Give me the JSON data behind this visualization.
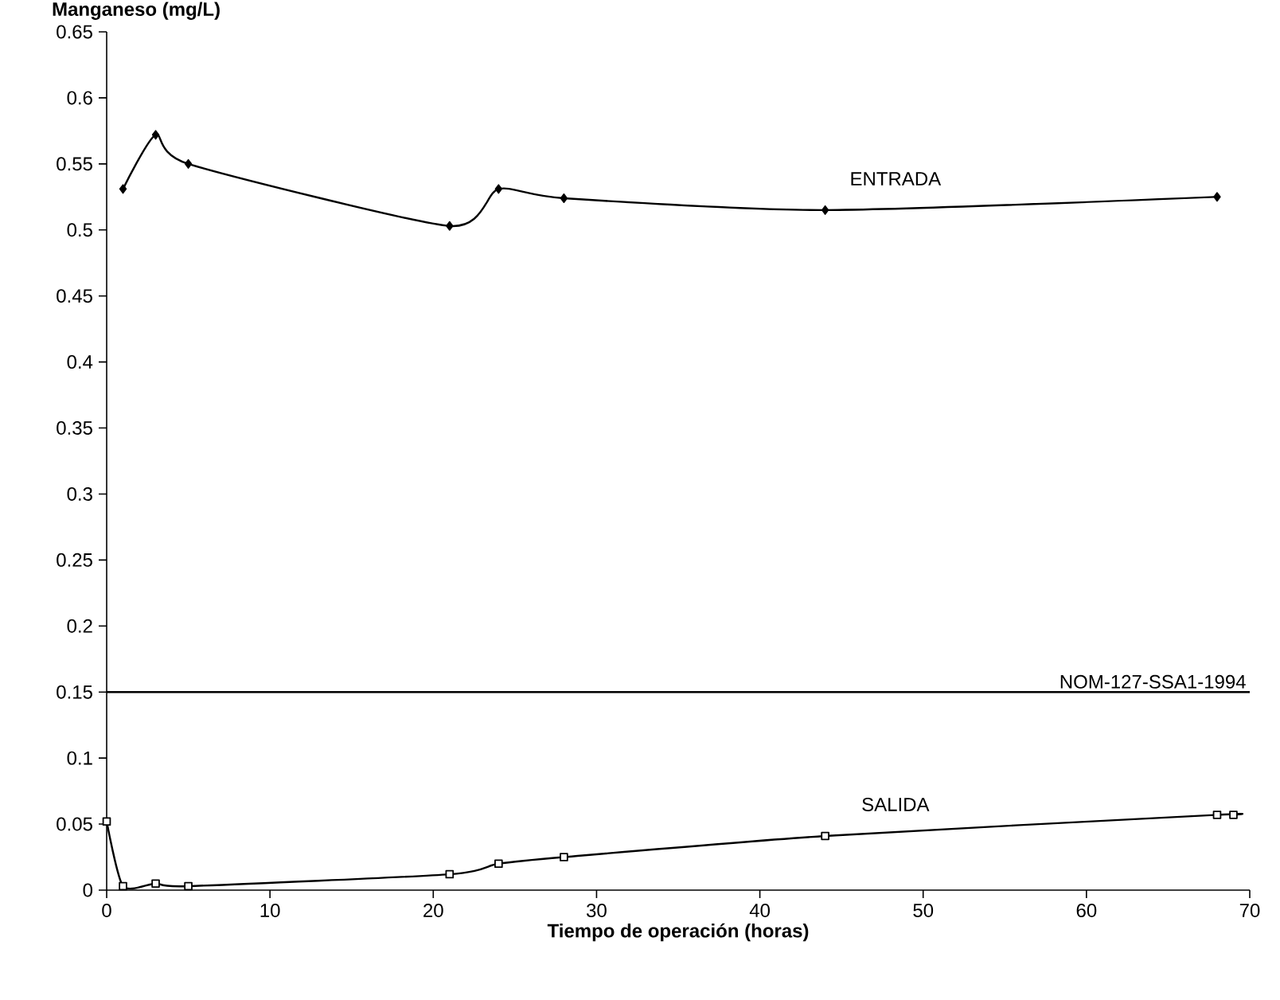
{
  "chart_data": {
    "type": "line",
    "xlabel": "Tiempo de operación (horas)",
    "ylabel": "Manganeso (mg/L)",
    "xlim": [
      0,
      70
    ],
    "xticks": [
      0,
      10,
      20,
      30,
      40,
      50,
      60,
      70
    ],
    "ylim": [
      0,
      0.65
    ],
    "yticks": [
      0,
      0.05,
      0.1,
      0.15,
      0.2,
      0.25,
      0.3,
      0.35,
      0.4,
      0.45,
      0.5,
      0.55,
      0.6,
      0.65
    ],
    "grid": false,
    "series": [
      {
        "color": "#000000",
        "marker": "diamond",
        "x": [
          1,
          3,
          5,
          21,
          24,
          28,
          44,
          68
        ],
        "values": [
          0.531,
          0.572,
          0.55,
          0.503,
          0.531,
          0.524,
          0.515,
          0.525
        ]
      },
      {
        "color": "#000000",
        "marker": "square",
        "x": [
          0,
          1,
          3,
          5,
          21,
          24,
          28,
          44,
          68,
          69
        ],
        "values": [
          0.052,
          0.003,
          0.005,
          0.003,
          0.012,
          0.02,
          0.025,
          0.041,
          0.057,
          0.057
        ]
      }
    ],
    "ref_lines": [
      {
        "axis": "y",
        "value": 0.15,
        "label": "NOM-127-SSA1-1994",
        "color": "#000000"
      }
    ],
    "annotations": [
      "ENTRADA",
      "SALIDA"
    ]
  }
}
